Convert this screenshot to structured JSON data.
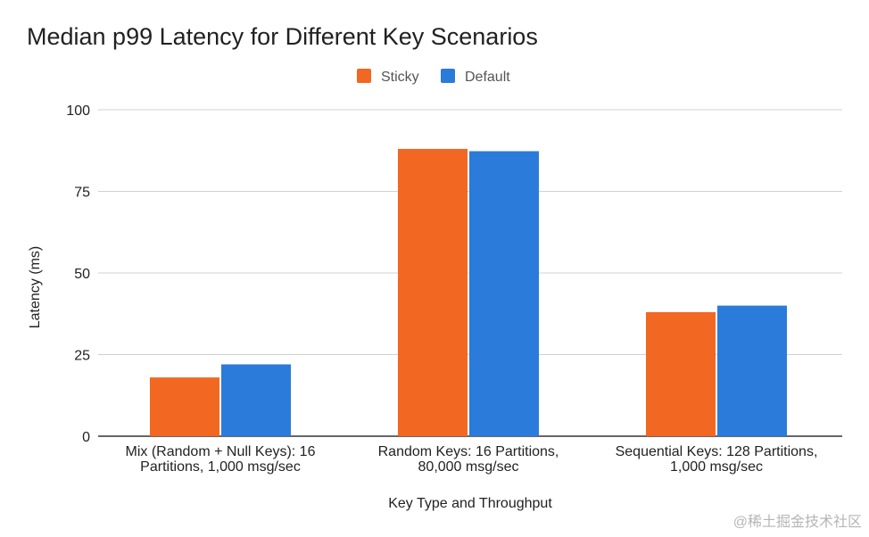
{
  "chart_data": {
    "type": "bar",
    "title": "Median p99 Latency for Different Key Scenarios",
    "categories": [
      [
        "Mix (Random + Null Keys): 16",
        "Partitions, 1,000 msg/sec"
      ],
      [
        "Random Keys: 16 Partitions,",
        "80,000 msg/sec"
      ],
      [
        "Sequential Keys: 128 Partitions,",
        "1,000 msg/sec"
      ]
    ],
    "series": [
      {
        "name": "Sticky",
        "color": "#F26722",
        "values": [
          18,
          88,
          38
        ]
      },
      {
        "name": "Default",
        "color": "#2B7BDA",
        "values": [
          22,
          87.3,
          40
        ]
      }
    ],
    "xlabel": "Key Type and Throughput",
    "ylabel": "Latency (ms)",
    "ylim": [
      0,
      100
    ],
    "yticks": [
      0,
      25,
      50,
      75,
      100
    ],
    "grid": true,
    "legend_position": "top"
  },
  "watermark": "@稀土掘金技术社区"
}
